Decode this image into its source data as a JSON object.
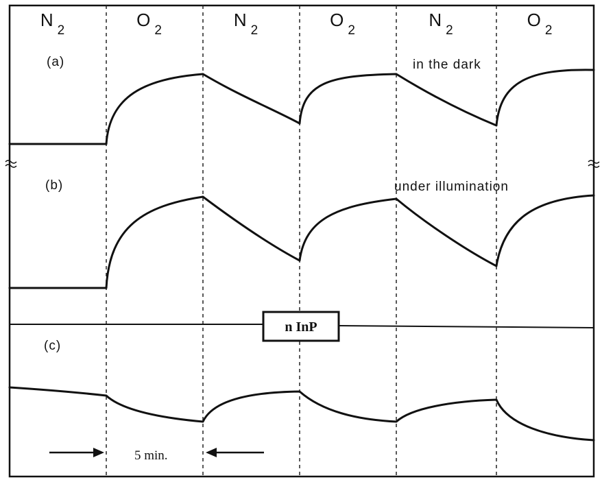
{
  "columns": [
    {
      "gas": "N",
      "sub": "2"
    },
    {
      "gas": "O",
      "sub": "2"
    },
    {
      "gas": "N",
      "sub": "2"
    },
    {
      "gas": "O",
      "sub": "2"
    },
    {
      "gas": "N",
      "sub": "2"
    },
    {
      "gas": "O",
      "sub": "2"
    }
  ],
  "panels": [
    {
      "label": "(a)",
      "note": "in the dark"
    },
    {
      "label": "(b)",
      "note": "under illumination"
    },
    {
      "label": "(c)"
    }
  ],
  "sample": "n InP",
  "scale": "5 min."
}
